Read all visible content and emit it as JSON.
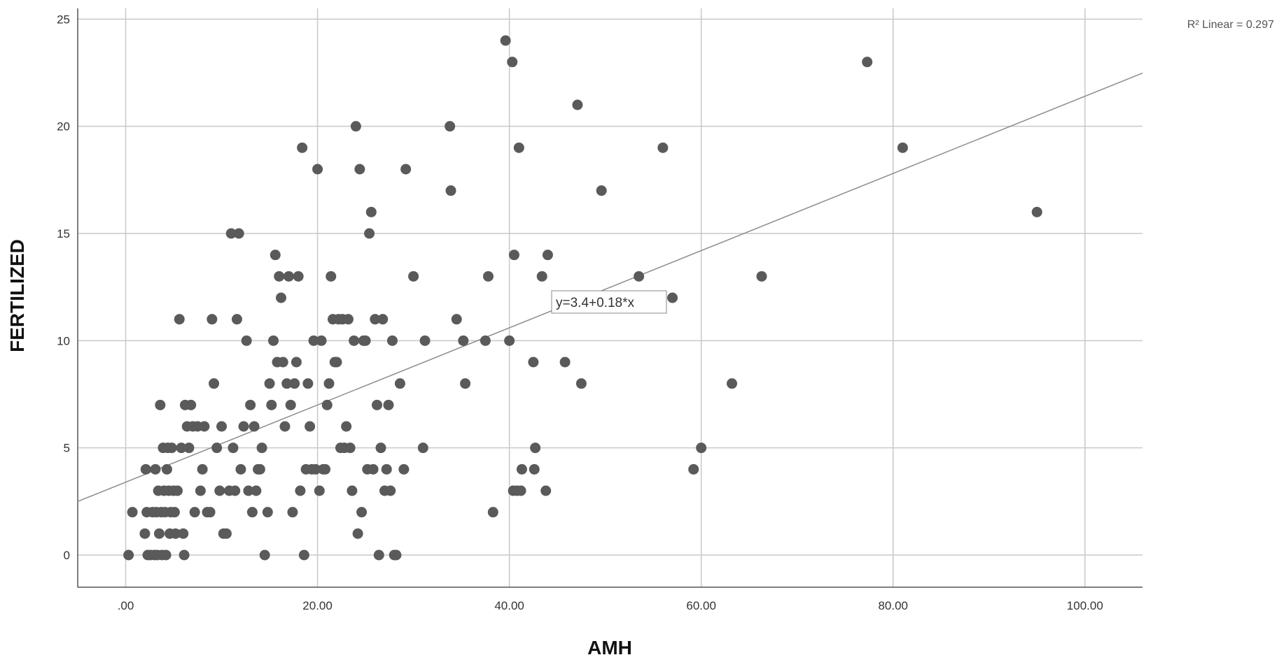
{
  "chart_data": {
    "type": "scatter",
    "title": "",
    "xlabel": "AMH",
    "ylabel": "FERTILIZED",
    "xlim": [
      -5,
      106
    ],
    "ylim": [
      -1.5,
      25.5
    ],
    "grid": true,
    "x_ticks": [
      0,
      20,
      40,
      60,
      80,
      100
    ],
    "x_tick_labels": [
      ".00",
      "20.00",
      "40.00",
      "60.00",
      "80.00",
      "100.00"
    ],
    "y_ticks": [
      0,
      5,
      10,
      15,
      20,
      25
    ],
    "y_tick_labels": [
      "0",
      "5",
      "10",
      "15",
      "20",
      "25"
    ],
    "fit_line": {
      "intercept": 3.4,
      "slope": 0.18,
      "equation_label": "y=3.4+0.18*x",
      "r2_label": "R² Linear = 0.297"
    },
    "point_color": "#5a5a5a",
    "line_color": "#8c8c8c",
    "grid_color": "#c8c8c8",
    "points": [
      [
        0.3,
        0
      ],
      [
        0.7,
        2
      ],
      [
        2.0,
        1
      ],
      [
        2.1,
        4
      ],
      [
        2.2,
        2
      ],
      [
        2.3,
        0
      ],
      [
        2.6,
        0
      ],
      [
        2.8,
        2
      ],
      [
        3.0,
        0
      ],
      [
        3.1,
        4
      ],
      [
        3.2,
        2
      ],
      [
        3.3,
        0
      ],
      [
        3.4,
        3
      ],
      [
        3.5,
        1
      ],
      [
        3.6,
        7
      ],
      [
        3.7,
        2
      ],
      [
        3.8,
        0
      ],
      [
        3.9,
        5
      ],
      [
        4.0,
        3
      ],
      [
        4.1,
        2
      ],
      [
        4.2,
        0
      ],
      [
        4.3,
        4
      ],
      [
        4.4,
        5
      ],
      [
        4.5,
        3
      ],
      [
        4.6,
        1
      ],
      [
        4.7,
        2
      ],
      [
        4.8,
        5
      ],
      [
        5.0,
        3
      ],
      [
        5.1,
        2
      ],
      [
        5.2,
        1
      ],
      [
        5.4,
        3
      ],
      [
        5.6,
        11
      ],
      [
        5.8,
        5
      ],
      [
        6.0,
        1
      ],
      [
        6.1,
        0
      ],
      [
        6.2,
        7
      ],
      [
        6.4,
        6
      ],
      [
        6.6,
        5
      ],
      [
        6.8,
        7
      ],
      [
        7.0,
        6
      ],
      [
        7.2,
        2
      ],
      [
        7.5,
        6
      ],
      [
        7.8,
        3
      ],
      [
        8.0,
        4
      ],
      [
        8.2,
        6
      ],
      [
        8.5,
        2
      ],
      [
        8.8,
        2
      ],
      [
        9.0,
        11
      ],
      [
        9.2,
        8
      ],
      [
        9.5,
        5
      ],
      [
        9.8,
        3
      ],
      [
        10.0,
        6
      ],
      [
        10.2,
        1
      ],
      [
        10.5,
        1
      ],
      [
        10.8,
        3
      ],
      [
        11.0,
        15
      ],
      [
        11.2,
        5
      ],
      [
        11.4,
        3
      ],
      [
        11.6,
        11
      ],
      [
        11.8,
        15
      ],
      [
        12.0,
        4
      ],
      [
        12.3,
        6
      ],
      [
        12.6,
        10
      ],
      [
        12.8,
        3
      ],
      [
        13.0,
        7
      ],
      [
        13.2,
        2
      ],
      [
        13.4,
        6
      ],
      [
        13.6,
        3
      ],
      [
        13.8,
        4
      ],
      [
        14.0,
        4
      ],
      [
        14.2,
        5
      ],
      [
        14.5,
        0
      ],
      [
        14.8,
        2
      ],
      [
        15.0,
        8
      ],
      [
        15.2,
        7
      ],
      [
        15.4,
        10
      ],
      [
        15.6,
        14
      ],
      [
        15.8,
        9
      ],
      [
        16.0,
        13
      ],
      [
        16.2,
        12
      ],
      [
        16.4,
        9
      ],
      [
        16.6,
        6
      ],
      [
        16.8,
        8
      ],
      [
        17.0,
        13
      ],
      [
        17.2,
        7
      ],
      [
        17.4,
        2
      ],
      [
        17.6,
        8
      ],
      [
        17.8,
        9
      ],
      [
        18.0,
        13
      ],
      [
        18.2,
        3
      ],
      [
        18.4,
        19
      ],
      [
        18.6,
        0
      ],
      [
        18.8,
        4
      ],
      [
        19.0,
        8
      ],
      [
        19.2,
        6
      ],
      [
        19.4,
        4
      ],
      [
        19.6,
        10
      ],
      [
        19.8,
        4
      ],
      [
        20.0,
        18
      ],
      [
        20.2,
        3
      ],
      [
        20.4,
        10
      ],
      [
        20.6,
        4
      ],
      [
        20.8,
        4
      ],
      [
        21.0,
        7
      ],
      [
        21.2,
        8
      ],
      [
        21.4,
        13
      ],
      [
        21.6,
        11
      ],
      [
        21.8,
        9
      ],
      [
        22.0,
        9
      ],
      [
        22.2,
        11
      ],
      [
        22.4,
        5
      ],
      [
        22.6,
        11
      ],
      [
        22.8,
        5
      ],
      [
        23.0,
        6
      ],
      [
        23.2,
        11
      ],
      [
        23.4,
        5
      ],
      [
        23.6,
        3
      ],
      [
        23.8,
        10
      ],
      [
        24.0,
        20
      ],
      [
        24.2,
        1
      ],
      [
        24.4,
        18
      ],
      [
        24.6,
        2
      ],
      [
        24.8,
        10
      ],
      [
        25.0,
        10
      ],
      [
        25.2,
        4
      ],
      [
        25.4,
        15
      ],
      [
        25.6,
        16
      ],
      [
        25.8,
        4
      ],
      [
        26.0,
        11
      ],
      [
        26.2,
        7
      ],
      [
        26.4,
        0
      ],
      [
        26.6,
        5
      ],
      [
        26.8,
        11
      ],
      [
        27.0,
        3
      ],
      [
        27.2,
        4
      ],
      [
        27.4,
        7
      ],
      [
        27.6,
        3
      ],
      [
        27.8,
        10
      ],
      [
        28.0,
        0
      ],
      [
        28.2,
        0
      ],
      [
        28.6,
        8
      ],
      [
        29.0,
        4
      ],
      [
        29.2,
        18
      ],
      [
        30.0,
        13
      ],
      [
        31.0,
        5
      ],
      [
        31.2,
        10
      ],
      [
        33.8,
        20
      ],
      [
        33.9,
        17
      ],
      [
        34.5,
        11
      ],
      [
        35.2,
        10
      ],
      [
        35.4,
        8
      ],
      [
        37.5,
        10
      ],
      [
        37.8,
        13
      ],
      [
        38.3,
        2
      ],
      [
        39.6,
        24
      ],
      [
        40.0,
        10
      ],
      [
        40.3,
        23
      ],
      [
        40.4,
        3
      ],
      [
        40.5,
        14
      ],
      [
        40.8,
        3
      ],
      [
        41.0,
        19
      ],
      [
        41.2,
        3
      ],
      [
        41.3,
        4
      ],
      [
        42.5,
        9
      ],
      [
        42.6,
        4
      ],
      [
        42.7,
        5
      ],
      [
        43.4,
        13
      ],
      [
        43.8,
        3
      ],
      [
        44.0,
        14
      ],
      [
        45.8,
        9
      ],
      [
        47.1,
        21
      ],
      [
        47.5,
        8
      ],
      [
        49.6,
        17
      ],
      [
        53.5,
        13
      ],
      [
        56.0,
        19
      ],
      [
        57.0,
        12
      ],
      [
        59.2,
        4
      ],
      [
        60.0,
        5
      ],
      [
        63.2,
        8
      ],
      [
        66.3,
        13
      ],
      [
        77.3,
        23
      ],
      [
        81.0,
        19
      ],
      [
        95.0,
        16
      ]
    ]
  }
}
